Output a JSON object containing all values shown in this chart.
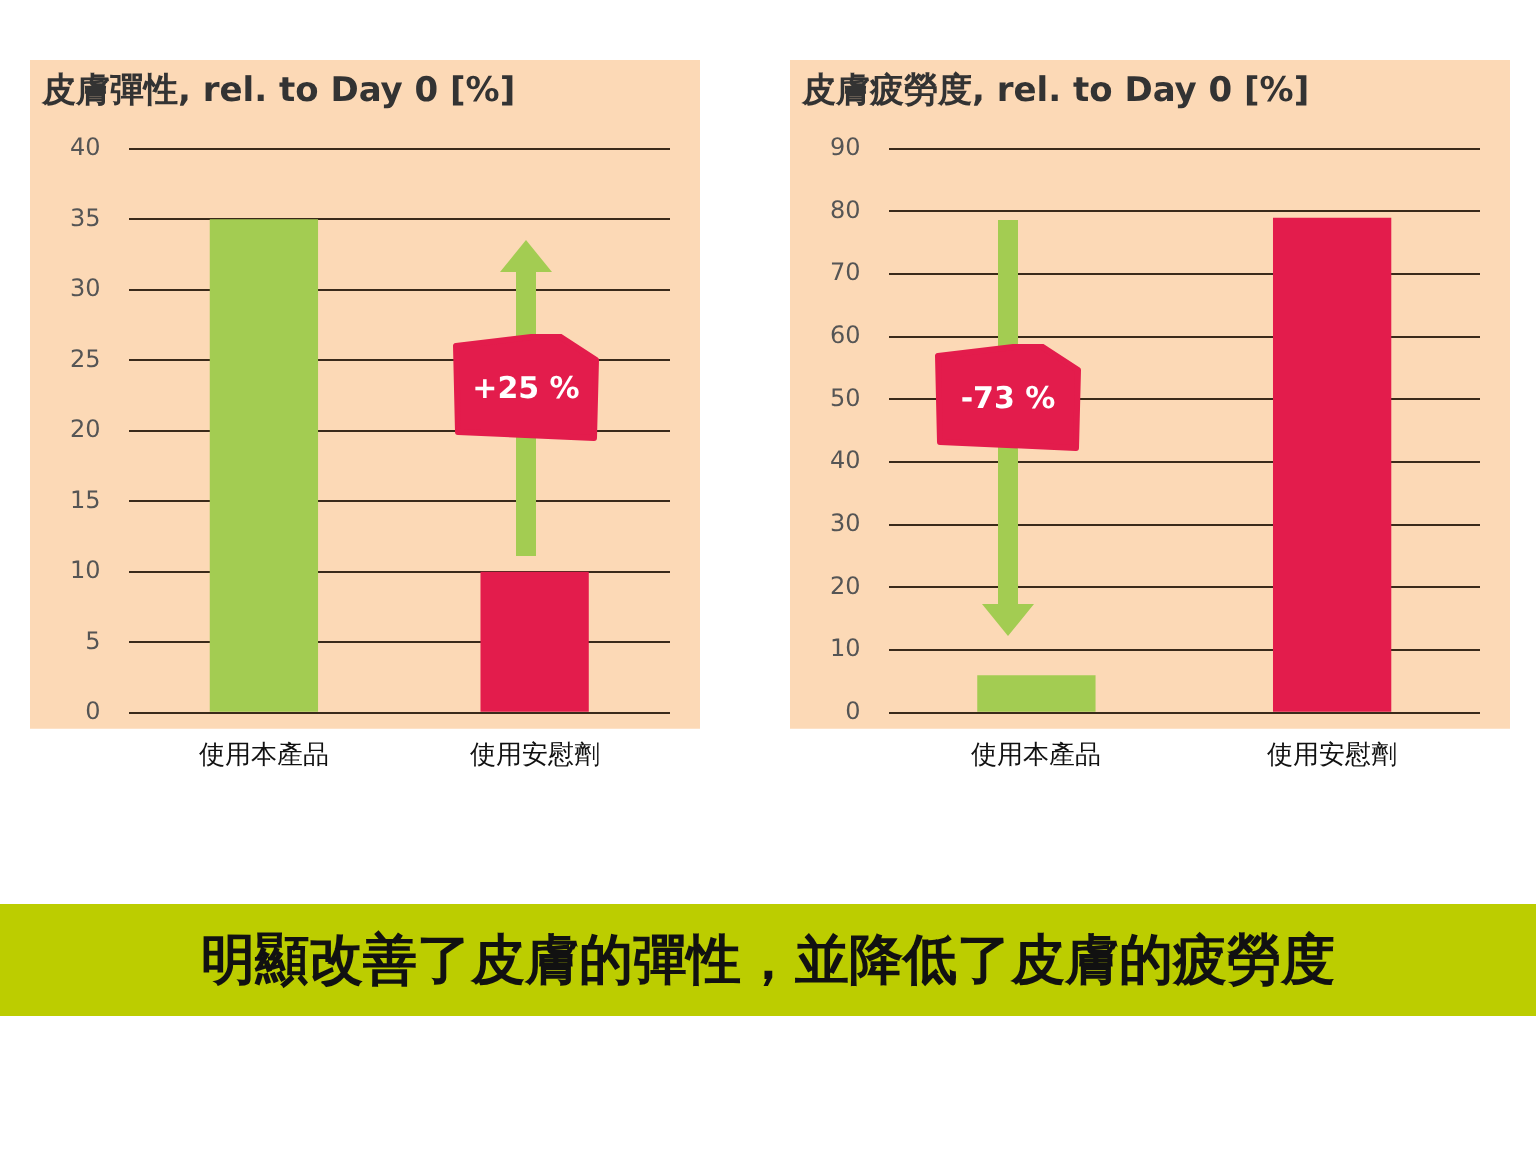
{
  "chart_data": [
    {
      "type": "bar",
      "title": "皮膚彈性, rel. to Day 0 [%]",
      "categories": [
        "使用本產品",
        "使用安慰劑"
      ],
      "colors": [
        "#a3cc52",
        "#e31c4c"
      ],
      "values": [
        35,
        10
      ],
      "ylim": [
        0,
        40
      ],
      "yticks": [
        0,
        5,
        10,
        15,
        20,
        25,
        30,
        35,
        40
      ],
      "grid": "y",
      "annotations": [
        "+25 %"
      ]
    },
    {
      "type": "bar",
      "title": "皮膚疲勞度, rel. to Day 0 [%]",
      "categories": [
        "使用本產品",
        "使用安慰劑"
      ],
      "colors": [
        "#a3cc52",
        "#e31c4c"
      ],
      "values": [
        6,
        79
      ],
      "ylim": [
        0,
        90
      ],
      "yticks": [
        0,
        10,
        20,
        30,
        40,
        50,
        60,
        70,
        80,
        90
      ],
      "grid": "y",
      "annotations": [
        "-73 %"
      ]
    },
    {
      "type": "other",
      "title": "明顯改善了皮膚的彈性，並降低了皮膚的疲勞度"
    }
  ]
}
